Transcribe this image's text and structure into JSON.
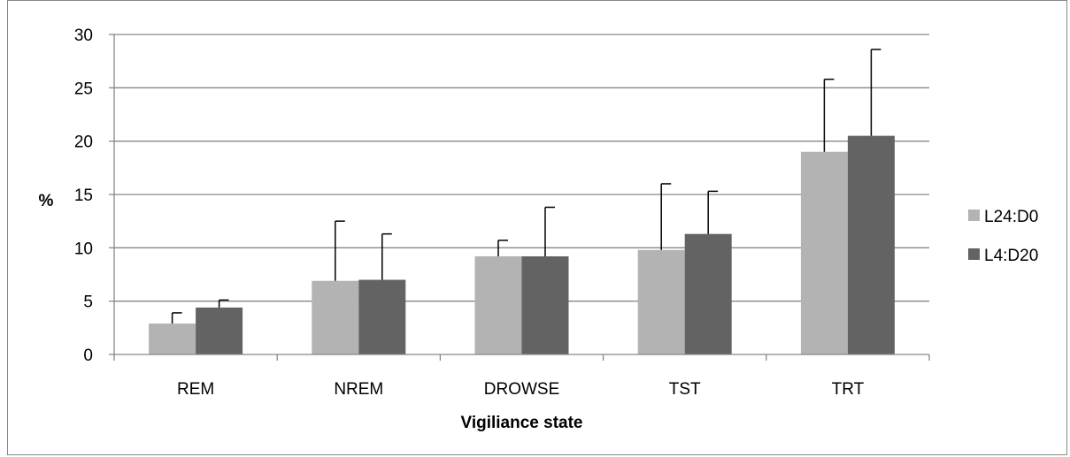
{
  "chart_data": {
    "type": "bar",
    "title": "",
    "xlabel": "Vigiliance state",
    "ylabel": "%",
    "ylim": [
      0,
      30
    ],
    "yticks": [
      0,
      5,
      10,
      15,
      20,
      25,
      30
    ],
    "grid": true,
    "legend_position": "right",
    "categories": [
      "REM",
      "NREM",
      "DROWSE",
      "TST",
      "TRT"
    ],
    "series": [
      {
        "name": "L24:D0",
        "color": "#b3b3b3",
        "values": [
          2.9,
          6.9,
          9.2,
          9.8,
          19.0
        ],
        "error_upper": [
          3.9,
          12.5,
          10.7,
          16.0,
          25.8
        ]
      },
      {
        "name": "L4:D20",
        "color": "#636363",
        "values": [
          4.4,
          7.0,
          9.2,
          11.3,
          20.5
        ],
        "error_upper": [
          5.1,
          11.3,
          13.8,
          15.3,
          28.6
        ]
      }
    ]
  }
}
